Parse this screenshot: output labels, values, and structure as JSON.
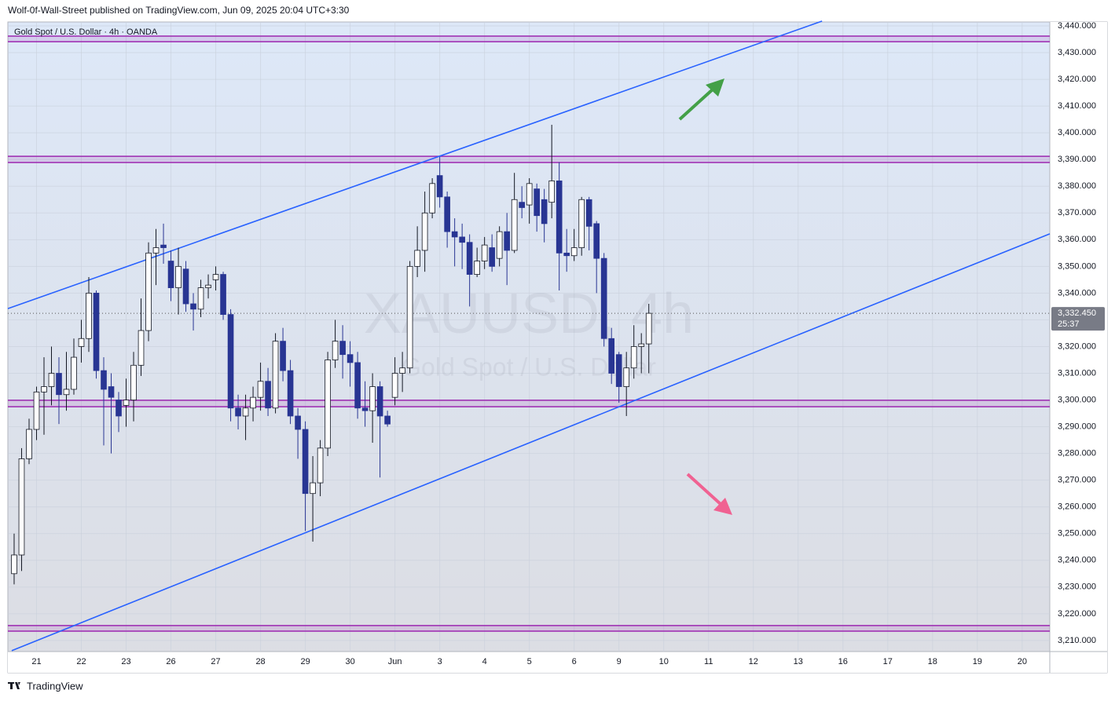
{
  "header": "Wolf-0f-Wall-Street published on TradingView.com, Jun 09, 2025 20:04 UTC+3:30",
  "footer": "TradingView",
  "chart_data": {
    "type": "candlestick",
    "title": "Gold Spot / U.S. Dollar · 4h · OANDA",
    "watermark": "XAUUSD, 4h",
    "watermark_subtitle": "Gold Spot / U.S. Dollar",
    "up_color": "#ffffff",
    "down_color": "#283593",
    "open": [
      3235,
      3242,
      3278,
      3289,
      3303,
      3305,
      3310,
      3302,
      3304,
      3320,
      3323,
      3340,
      3311,
      3305,
      3300,
      3298,
      3300,
      3313,
      3326,
      3355,
      3358,
      3352,
      3342,
      3349,
      3336,
      3334,
      3342,
      3345,
      3347,
      3332,
      3297,
      3294,
      3297,
      3301,
      3307,
      3297,
      3322,
      3311,
      3294,
      3289,
      3265,
      3269,
      3282,
      3315,
      3322,
      3317,
      3314,
      3297,
      3296,
      3305,
      3294,
      3301,
      3310,
      3312,
      3350,
      3356,
      3370,
      3384,
      3376,
      3363,
      3361,
      3359,
      3347,
      3352,
      3357,
      3353,
      3363,
      3356,
      3374,
      3373,
      3379,
      3375,
      3374,
      3382,
      3355,
      3354,
      3357,
      3375,
      3366,
      3353,
      3323,
      3317,
      3305,
      3312,
      3320,
      3321
    ],
    "high": [
      3250,
      3282,
      3293,
      3305,
      3316,
      3320,
      3316,
      3318,
      3323,
      3330,
      3346,
      3341,
      3316,
      3310,
      3303,
      3308,
      3318,
      3338,
      3359,
      3364,
      3366,
      3356,
      3357,
      3352,
      3340,
      3345,
      3347,
      3350,
      3348,
      3334,
      3302,
      3302,
      3305,
      3314,
      3312,
      3325,
      3327,
      3315,
      3297,
      3292,
      3279,
      3285,
      3318,
      3330,
      3328,
      3322,
      3318,
      3307,
      3310,
      3307,
      3296,
      3316,
      3318,
      3352,
      3365,
      3378,
      3383,
      3391,
      3378,
      3368,
      3366,
      3362,
      3357,
      3361,
      3362,
      3365,
      3370,
      3385,
      3380,
      3383,
      3381,
      3379,
      3403,
      3389,
      3364,
      3364,
      3376,
      3376,
      3367,
      3355,
      3327,
      3318,
      3318,
      3328,
      3325,
      3336
    ],
    "low": [
      3231,
      3236,
      3276,
      3285,
      3287,
      3298,
      3291,
      3296,
      3302,
      3314,
      3318,
      3308,
      3283,
      3280,
      3288,
      3290,
      3292,
      3309,
      3322,
      3343,
      3351,
      3337,
      3332,
      3333,
      3326,
      3331,
      3338,
      3341,
      3330,
      3292,
      3289,
      3285,
      3292,
      3296,
      3294,
      3295,
      3307,
      3291,
      3278,
      3251,
      3247,
      3264,
      3279,
      3312,
      3308,
      3305,
      3293,
      3290,
      3284,
      3271,
      3290,
      3298,
      3303,
      3310,
      3346,
      3348,
      3368,
      3372,
      3357,
      3350,
      3349,
      3335,
      3346,
      3349,
      3348,
      3350,
      3343,
      3355,
      3368,
      3366,
      3363,
      3359,
      3368,
      3341,
      3348,
      3352,
      3354,
      3356,
      3340,
      3320,
      3306,
      3299,
      3294,
      3308,
      3310,
      3310
    ],
    "close": [
      3242,
      3278,
      3289,
      3303,
      3305,
      3310,
      3302,
      3304,
      3316,
      3323,
      3340,
      3311,
      3304,
      3301,
      3294,
      3300,
      3313,
      3326,
      3355,
      3357,
      3357,
      3342,
      3350,
      3336,
      3334,
      3342,
      3343,
      3347,
      3332,
      3297,
      3294,
      3297,
      3301,
      3307,
      3297,
      3322,
      3311,
      3294,
      3289,
      3265,
      3269,
      3282,
      3315,
      3322,
      3317,
      3314,
      3297,
      3296,
      3305,
      3294,
      3291,
      3310,
      3312,
      3350,
      3356,
      3370,
      3381,
      3376,
      3363,
      3361,
      3359,
      3347,
      3352,
      3358,
      3350,
      3363,
      3356,
      3375,
      3372,
      3381,
      3369,
      3366,
      3382,
      3355,
      3354,
      3357,
      3375,
      3365,
      3353,
      3323,
      3310,
      3305,
      3312,
      3320,
      3321,
      3332.45
    ],
    "last_price": {
      "value": 3332.45,
      "label": "3,332.450"
    },
    "countdown": "25:37",
    "level_color": "#9c27b0",
    "levels": [
      [
        3436.2,
        3434.1
      ],
      [
        3391.2,
        3388.9
      ],
      [
        3299.9,
        3297.5
      ],
      [
        3215.6,
        3213.5
      ]
    ],
    "trend_color": "#2962ff",
    "trendlines": [
      [
        [
          -0.84,
          3334.2
        ],
        [
          108.2,
          3441.8
        ]
      ],
      [
        [
          -0.32,
          3206.2
        ],
        [
          138.7,
          3362.2
        ]
      ]
    ],
    "xlim": [
      -0.84,
      138.7
    ],
    "ylim": [
      3205.86,
      3441.47
    ],
    "xticks": [
      {
        "value": 3,
        "label": "21"
      },
      {
        "value": 9,
        "label": "22"
      },
      {
        "value": 15,
        "label": "23"
      },
      {
        "value": 21,
        "label": "26"
      },
      {
        "value": 27,
        "label": "27"
      },
      {
        "value": 33,
        "label": "28"
      },
      {
        "value": 39,
        "label": "29"
      },
      {
        "value": 45,
        "label": "30"
      },
      {
        "value": 51,
        "label": "Jun"
      },
      {
        "value": 57,
        "label": "3"
      },
      {
        "value": 63,
        "label": "4"
      },
      {
        "value": 69,
        "label": "5"
      },
      {
        "value": 75,
        "label": "6"
      },
      {
        "value": 81,
        "label": "9"
      },
      {
        "value": 87,
        "label": "10"
      },
      {
        "value": 93,
        "label": "11"
      },
      {
        "value": 99,
        "label": "12"
      },
      {
        "value": 105,
        "label": "13"
      },
      {
        "value": 111,
        "label": "16"
      },
      {
        "value": 117,
        "label": "17"
      },
      {
        "value": 123,
        "label": "18"
      },
      {
        "value": 129,
        "label": "19"
      },
      {
        "value": 135,
        "label": "20"
      }
    ],
    "yticks": [
      {
        "value": 3210,
        "label": "3,210.000"
      },
      {
        "value": 3220,
        "label": "3,220.000"
      },
      {
        "value": 3230,
        "label": "3,230.000"
      },
      {
        "value": 3240,
        "label": "3,240.000"
      },
      {
        "value": 3250,
        "label": "3,250.000"
      },
      {
        "value": 3260,
        "label": "3,260.000"
      },
      {
        "value": 3270,
        "label": "3,270.000"
      },
      {
        "value": 3280,
        "label": "3,280.000"
      },
      {
        "value": 3290,
        "label": "3,290.000"
      },
      {
        "value": 3300,
        "label": "3,300.000"
      },
      {
        "value": 3310,
        "label": "3,310.000"
      },
      {
        "value": 3320,
        "label": "3,320.000"
      },
      {
        "value": 3330,
        "label": "3,330.000"
      },
      {
        "value": 3340,
        "label": "3,340.000"
      },
      {
        "value": 3350,
        "label": "3,350.000"
      },
      {
        "value": 3360,
        "label": "3,360.000"
      },
      {
        "value": 3370,
        "label": "3,370.000"
      },
      {
        "value": 3380,
        "label": "3,380.000"
      },
      {
        "value": 3390,
        "label": "3,390.000"
      },
      {
        "value": 3400,
        "label": "3,400.000"
      },
      {
        "value": 3410,
        "label": "3,410.000"
      },
      {
        "value": 3420,
        "label": "3,420.000"
      },
      {
        "value": 3430,
        "label": "3,430.000"
      },
      {
        "value": 3440,
        "label": "3,440.000"
      }
    ],
    "grid": true
  }
}
